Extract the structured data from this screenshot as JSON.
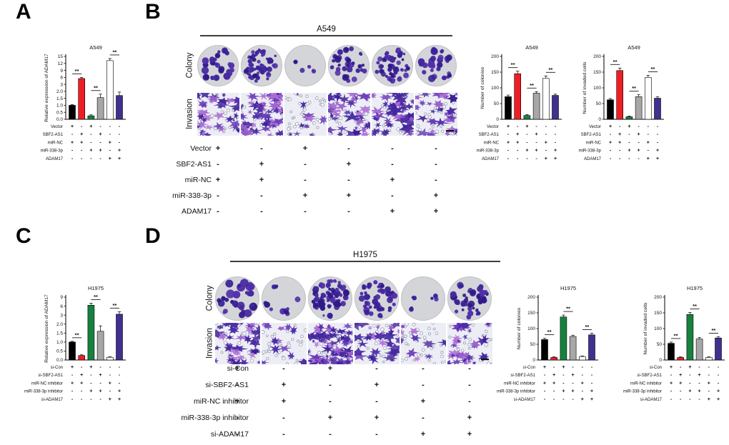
{
  "figure": {
    "background": "#ffffff"
  },
  "colors": {
    "bar_black": "#000000",
    "bar_red": "#ed1f24",
    "bar_green": "#17813f",
    "bar_gray": "#a7a7a7",
    "bar_white": "#ffffff",
    "bar_purple": "#41308e",
    "dish_background": "#d4d5d9",
    "colony_stain": "#3c2598",
    "invasion_background": "#edeef5",
    "cell_stain": "#4a28a8",
    "header_line": "#3d3d3d"
  },
  "panels": {
    "A": {
      "label": "A",
      "chart_index": 0,
      "treatment": {
        "labels": [
          "Vector",
          "SBF2-AS1",
          "miR-NC",
          "miR-338-3p",
          "ADAM17"
        ],
        "matrix": [
          [
            "+",
            "-",
            "+",
            "-",
            "-",
            "-"
          ],
          [
            "-",
            "+",
            "-",
            "+",
            "-",
            "-"
          ],
          [
            "+",
            "+",
            "-",
            "-",
            "+",
            "-"
          ],
          [
            "-",
            "-",
            "+",
            "+",
            "-",
            "+"
          ],
          [
            "-",
            "-",
            "-",
            "-",
            "+",
            "+"
          ]
        ]
      }
    },
    "B": {
      "label": "B",
      "cell_line": "A549",
      "colony_label": "Colony",
      "invasion_label": "Invasion",
      "treatment": {
        "labels": [
          "Vector",
          "SBF2-AS1",
          "miR-NC",
          "miR-338-3p",
          "ADAM17"
        ],
        "matrix": [
          [
            "+",
            "-",
            "+",
            "-",
            "-",
            "-"
          ],
          [
            "-",
            "+",
            "-",
            "+",
            "-",
            "-"
          ],
          [
            "+",
            "+",
            "-",
            "-",
            "+",
            "-"
          ],
          [
            "-",
            "-",
            "+",
            "+",
            "-",
            "+"
          ],
          [
            "-",
            "-",
            "-",
            "-",
            "+",
            "+"
          ]
        ]
      },
      "colony_dishes": [
        {
          "seed": 11,
          "count": 22,
          "rmin": 2.0,
          "rmax": 5.2
        },
        {
          "seed": 12,
          "count": 55,
          "rmin": 1.5,
          "rmax": 4.0
        },
        {
          "seed": 13,
          "count": 5,
          "rmin": 2.0,
          "rmax": 4.0
        },
        {
          "seed": 14,
          "count": 30,
          "rmin": 2.0,
          "rmax": 4.5
        },
        {
          "seed": 15,
          "count": 48,
          "rmin": 1.5,
          "rmax": 4.0
        },
        {
          "seed": 16,
          "count": 24,
          "rmin": 2.2,
          "rmax": 5.2
        }
      ],
      "invasion_images": [
        {
          "seed": 21,
          "cells": 38,
          "pores": 26,
          "scalebar": false
        },
        {
          "seed": 22,
          "cells": 60,
          "pores": 18,
          "scalebar": false
        },
        {
          "seed": 23,
          "cells": 10,
          "pores": 40,
          "scalebar": false
        },
        {
          "seed": 24,
          "cells": 42,
          "pores": 24,
          "scalebar": false
        },
        {
          "seed": 25,
          "cells": 55,
          "pores": 20,
          "scalebar": false
        },
        {
          "seed": 26,
          "cells": 30,
          "pores": 28,
          "scalebar": true
        }
      ],
      "chart_indices": [
        1,
        2
      ]
    },
    "C": {
      "label": "C",
      "chart_index": 3,
      "treatment": {
        "labels": [
          "si-Con",
          "si-SBF2-AS1",
          "miR-NC inhibitor",
          "miR-338-3p inhibitor",
          "si-ADAM17"
        ],
        "matrix": [
          [
            "+",
            "-",
            "+",
            "-",
            "-",
            "-"
          ],
          [
            "-",
            "+",
            "-",
            "+",
            "-",
            "-"
          ],
          [
            "+",
            "+",
            "-",
            "-",
            "+",
            "-"
          ],
          [
            "-",
            "-",
            "+",
            "+",
            "-",
            "+"
          ],
          [
            "-",
            "-",
            "-",
            "-",
            "+",
            "+"
          ]
        ]
      }
    },
    "D": {
      "label": "D",
      "cell_line": "H1975",
      "colony_label": "Colony",
      "invasion_label": "Invasion",
      "treatment": {
        "labels": [
          "si-Con",
          "si-SBF2-AS1",
          "miR-NC inhibitor",
          "miR-338-3p inhibitor",
          "si-ADAM17"
        ],
        "matrix": [
          [
            "+",
            "-",
            "+",
            "-",
            "-",
            "-"
          ],
          [
            "-",
            "+",
            "-",
            "+",
            "-",
            "-"
          ],
          [
            "+",
            "+",
            "-",
            "-",
            "+",
            "-"
          ],
          [
            "-",
            "-",
            "+",
            "+",
            "-",
            "+"
          ],
          [
            "-",
            "-",
            "-",
            "-",
            "+",
            "+"
          ]
        ]
      },
      "colony_dishes": [
        {
          "seed": 31,
          "count": 24,
          "rmin": 2.5,
          "rmax": 6.5
        },
        {
          "seed": 32,
          "count": 9,
          "rmin": 2.0,
          "rmax": 4.5
        },
        {
          "seed": 33,
          "count": 60,
          "rmin": 1.6,
          "rmax": 4.6
        },
        {
          "seed": 34,
          "count": 42,
          "rmin": 1.8,
          "rmax": 4.6
        },
        {
          "seed": 35,
          "count": 5,
          "rmin": 2.0,
          "rmax": 3.6
        },
        {
          "seed": 36,
          "count": 36,
          "rmin": 1.8,
          "rmax": 4.8
        }
      ],
      "invasion_images": [
        {
          "seed": 41,
          "cells": 42,
          "pores": 24,
          "scalebar": false
        },
        {
          "seed": 42,
          "cells": 12,
          "pores": 38,
          "scalebar": false
        },
        {
          "seed": 43,
          "cells": 60,
          "pores": 16,
          "scalebar": false
        },
        {
          "seed": 44,
          "cells": 32,
          "pores": 26,
          "scalebar": false
        },
        {
          "seed": 45,
          "cells": 10,
          "pores": 40,
          "scalebar": false
        },
        {
          "seed": 46,
          "cells": 32,
          "pores": 26,
          "scalebar": true
        }
      ],
      "chart_indices": [
        4,
        5
      ]
    }
  },
  "chart_data": [
    {
      "id": "A-expression",
      "type": "bar",
      "panel": "A",
      "conditions_panel": "A",
      "title": "A549",
      "ylabel": "Relative expression of ADAM17",
      "ytick_labels": [
        "0.0",
        "0.5",
        "1.0",
        "1.5",
        "2.0",
        "3",
        "6",
        "9",
        "12",
        "15"
      ],
      "ytick_values": [
        0,
        0.5,
        1,
        1.5,
        2,
        3,
        6,
        9,
        12,
        15
      ],
      "values": [
        1.0,
        5.5,
        0.25,
        1.55,
        13.2,
        1.7
      ],
      "errors": [
        0.05,
        0.5,
        0.07,
        0.25,
        0.9,
        0.25
      ],
      "bar_colors": [
        "black",
        "red",
        "green",
        "gray",
        "white",
        "purple"
      ],
      "significance": [
        {
          "pair": [
            0,
            1
          ],
          "label": "**"
        },
        {
          "pair": [
            2,
            3
          ],
          "label": "**"
        },
        {
          "pair": [
            4,
            5
          ],
          "label": "**"
        }
      ]
    },
    {
      "id": "B-colonies",
      "type": "bar",
      "panel": "B",
      "conditions_panel": "B",
      "title": "A549",
      "ylabel": "Number of colonies",
      "ytick_labels": [
        "0",
        "50",
        "100",
        "150",
        "200"
      ],
      "ytick_values": [
        0,
        50,
        100,
        150,
        200
      ],
      "values": [
        72,
        145,
        12,
        83,
        130,
        76
      ],
      "errors": [
        5,
        8,
        3,
        5,
        8,
        4
      ],
      "bar_colors": [
        "black",
        "red",
        "green",
        "gray",
        "white",
        "purple"
      ],
      "significance": [
        {
          "pair": [
            0,
            1
          ],
          "label": "**"
        },
        {
          "pair": [
            2,
            3
          ],
          "label": "**"
        },
        {
          "pair": [
            4,
            5
          ],
          "label": "**"
        }
      ]
    },
    {
      "id": "B-invaded",
      "type": "bar",
      "panel": "B",
      "conditions_panel": "B",
      "title": "A549",
      "ylabel": "Number of invaded cells",
      "ytick_labels": [
        "0",
        "50",
        "100",
        "150",
        "200"
      ],
      "ytick_values": [
        0,
        50,
        100,
        150,
        200
      ],
      "values": [
        62,
        155,
        8,
        72,
        133,
        67
      ],
      "errors": [
        4,
        8,
        2,
        6,
        7,
        5
      ],
      "bar_colors": [
        "black",
        "red",
        "green",
        "gray",
        "white",
        "purple"
      ],
      "significance": [
        {
          "pair": [
            0,
            1
          ],
          "label": "**"
        },
        {
          "pair": [
            2,
            3
          ],
          "label": "**"
        },
        {
          "pair": [
            4,
            5
          ],
          "label": "**"
        }
      ]
    },
    {
      "id": "C-expression",
      "type": "bar",
      "panel": "C",
      "conditions_panel": "C",
      "title": "H1975",
      "ylabel": "Relative expression of ADAM17",
      "ytick_labels": [
        "0.0",
        "0.5",
        "1.0",
        "1.5",
        "2.0",
        "3",
        "6",
        "9"
      ],
      "ytick_values": [
        0,
        0.5,
        1,
        1.5,
        2,
        3,
        6,
        9
      ],
      "values": [
        1.0,
        0.25,
        6.3,
        1.6,
        0.15,
        3.3
      ],
      "errors": [
        0.04,
        0.04,
        0.7,
        0.3,
        0.04,
        0.85
      ],
      "bar_colors": [
        "black",
        "red",
        "green",
        "gray",
        "white",
        "purple"
      ],
      "significance": [
        {
          "pair": [
            0,
            1
          ],
          "label": "**"
        },
        {
          "pair": [
            2,
            3
          ],
          "label": "**"
        },
        {
          "pair": [
            4,
            5
          ],
          "label": "**"
        }
      ]
    },
    {
      "id": "D-colonies",
      "type": "bar",
      "panel": "D",
      "conditions_panel": "D",
      "title": "H1975",
      "ylabel": "Number of colonies",
      "ytick_labels": [
        "0",
        "50",
        "100",
        "150",
        "200"
      ],
      "ytick_values": [
        0,
        50,
        100,
        150,
        200
      ],
      "values": [
        65,
        8,
        137,
        75,
        11,
        80
      ],
      "errors": [
        4,
        2,
        6,
        4,
        2,
        5
      ],
      "bar_colors": [
        "black",
        "red",
        "green",
        "gray",
        "white",
        "purple"
      ],
      "significance": [
        {
          "pair": [
            0,
            1
          ],
          "label": "**"
        },
        {
          "pair": [
            2,
            3
          ],
          "label": "**"
        },
        {
          "pair": [
            4,
            5
          ],
          "label": "**"
        }
      ]
    },
    {
      "id": "D-invaded",
      "type": "bar",
      "panel": "D",
      "conditions_panel": "D",
      "title": "H1975",
      "ylabel": "Number of invaded cells",
      "ytick_labels": [
        "0",
        "50",
        "100",
        "150",
        "200"
      ],
      "ytick_values": [
        0,
        50,
        100,
        150,
        200
      ],
      "values": [
        53,
        8,
        145,
        67,
        8,
        70
      ],
      "errors": [
        4,
        2,
        6,
        5,
        2,
        4
      ],
      "bar_colors": [
        "black",
        "red",
        "green",
        "gray",
        "white",
        "purple"
      ],
      "significance": [
        {
          "pair": [
            0,
            1
          ],
          "label": "**"
        },
        {
          "pair": [
            2,
            3
          ],
          "label": "**"
        },
        {
          "pair": [
            4,
            5
          ],
          "label": "**"
        }
      ]
    }
  ]
}
